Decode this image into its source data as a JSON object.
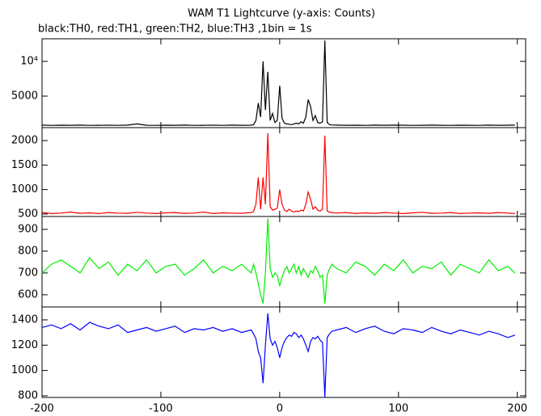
{
  "chart_data": [
    {
      "type": "line",
      "title": "WAM T1 Lightcurve (y-axis: Counts)",
      "subtitle": "black:TH0, red:TH1, green:TH2, blue:TH3 ,1bin = 1s",
      "color": "#000000",
      "x": [
        -200,
        -192,
        -184,
        -176,
        -168,
        -160,
        -152,
        -144,
        -136,
        -128,
        -120,
        -112,
        -104,
        -96,
        -88,
        -80,
        -72,
        -64,
        -56,
        -48,
        -40,
        -32,
        -24,
        -22,
        -20,
        -18,
        -16,
        -14,
        -12,
        -10,
        -8,
        -6,
        -4,
        -2,
        0,
        2,
        4,
        6,
        8,
        10,
        12,
        14,
        16,
        18,
        20,
        22,
        24,
        26,
        28,
        30,
        32,
        34,
        36,
        38,
        40,
        42,
        44,
        48,
        56,
        64,
        72,
        80,
        88,
        96,
        104,
        112,
        120,
        128,
        136,
        144,
        152,
        160,
        168,
        176,
        184,
        192,
        198
      ],
      "values": [
        820,
        790,
        810,
        800,
        830,
        790,
        800,
        810,
        790,
        820,
        1000,
        800,
        790,
        810,
        800,
        820,
        790,
        800,
        810,
        790,
        820,
        800,
        810,
        900,
        1500,
        4000,
        2000,
        10000,
        3000,
        8500,
        1500,
        2500,
        1200,
        1500,
        6500,
        1800,
        1100,
        1000,
        950,
        900,
        1000,
        1100,
        1000,
        1300,
        1100,
        2000,
        4500,
        3500,
        1500,
        2200,
        1200,
        1100,
        1300,
        13000,
        1200,
        900,
        850,
        820,
        800,
        810,
        790,
        820,
        800,
        830,
        810,
        790,
        800,
        820,
        800,
        790,
        810,
        800,
        790,
        820,
        800,
        810,
        830
      ],
      "xlim": [
        -200,
        207
      ],
      "xticks": [
        -200,
        -100,
        0,
        100,
        200
      ],
      "ylim": [
        465,
        13256
      ],
      "yticks": [
        5000,
        {
          "value": 10000,
          "label": "10⁴"
        }
      ]
    },
    {
      "type": "line",
      "color": "#ff0000",
      "x": [
        -200,
        -192,
        -184,
        -176,
        -168,
        -160,
        -152,
        -144,
        -136,
        -128,
        -120,
        -112,
        -104,
        -96,
        -88,
        -80,
        -72,
        -64,
        -56,
        -48,
        -40,
        -32,
        -24,
        -22,
        -20,
        -18,
        -16,
        -14,
        -12,
        -10,
        -8,
        -6,
        -4,
        -2,
        0,
        2,
        4,
        6,
        8,
        10,
        12,
        14,
        16,
        18,
        20,
        22,
        24,
        26,
        28,
        30,
        32,
        34,
        36,
        38,
        40,
        42,
        44,
        48,
        56,
        64,
        72,
        80,
        88,
        96,
        104,
        112,
        120,
        128,
        136,
        144,
        152,
        160,
        168,
        176,
        184,
        192,
        198
      ],
      "values": [
        530,
        510,
        520,
        540,
        515,
        525,
        510,
        530,
        520,
        515,
        535,
        520,
        510,
        525,
        530,
        515,
        520,
        540,
        510,
        525,
        520,
        515,
        530,
        550,
        700,
        1250,
        600,
        1250,
        700,
        2150,
        650,
        580,
        600,
        620,
        1000,
        700,
        580,
        550,
        600,
        560,
        540,
        560,
        550,
        580,
        560,
        700,
        950,
        800,
        600,
        650,
        580,
        560,
        600,
        2100,
        560,
        540,
        530,
        520,
        530,
        510,
        525,
        515,
        530,
        520,
        510,
        525,
        535,
        515,
        520,
        530,
        510,
        520,
        525,
        515,
        530,
        520,
        510
      ],
      "xlim": [
        -200,
        207
      ],
      "xticks": [
        -200,
        -100,
        0,
        100,
        200
      ],
      "ylim": [
        450,
        2264
      ],
      "yticks": [
        500,
        1000,
        1500,
        2000
      ]
    },
    {
      "type": "line",
      "color": "#00ee00",
      "x": [
        -200,
        -192,
        -184,
        -176,
        -168,
        -160,
        -152,
        -144,
        -136,
        -128,
        -120,
        -112,
        -104,
        -96,
        -88,
        -80,
        -72,
        -64,
        -56,
        -48,
        -40,
        -32,
        -24,
        -22,
        -20,
        -18,
        -16,
        -14,
        -12,
        -10,
        -8,
        -6,
        -4,
        -2,
        0,
        2,
        4,
        6,
        8,
        10,
        12,
        14,
        16,
        18,
        20,
        22,
        24,
        26,
        28,
        30,
        32,
        34,
        36,
        38,
        40,
        42,
        44,
        48,
        56,
        64,
        72,
        80,
        88,
        96,
        104,
        112,
        120,
        128,
        136,
        144,
        152,
        160,
        168,
        176,
        184,
        192,
        198
      ],
      "values": [
        700,
        740,
        760,
        730,
        700,
        770,
        720,
        750,
        690,
        740,
        710,
        760,
        700,
        730,
        740,
        690,
        720,
        760,
        700,
        730,
        710,
        740,
        700,
        740,
        700,
        650,
        600,
        560,
        700,
        950,
        720,
        680,
        700,
        690,
        640,
        680,
        710,
        730,
        700,
        720,
        740,
        700,
        730,
        690,
        720,
        700,
        680,
        710,
        700,
        730,
        710,
        680,
        690,
        560,
        690,
        720,
        740,
        720,
        700,
        750,
        730,
        690,
        740,
        710,
        760,
        700,
        730,
        720,
        750,
        690,
        740,
        720,
        700,
        760,
        710,
        730,
        700
      ],
      "xlim": [
        -200,
        207
      ],
      "xticks": [
        -200,
        -100,
        0,
        100,
        200
      ],
      "ylim": [
        544,
        959
      ],
      "yticks": [
        600,
        700,
        800,
        900
      ]
    },
    {
      "type": "line",
      "color": "#0000ff",
      "x": [
        -200,
        -192,
        -184,
        -176,
        -168,
        -160,
        -152,
        -144,
        -136,
        -128,
        -120,
        -112,
        -104,
        -96,
        -88,
        -80,
        -72,
        -64,
        -56,
        -48,
        -40,
        -32,
        -24,
        -22,
        -20,
        -18,
        -16,
        -14,
        -12,
        -10,
        -8,
        -6,
        -4,
        -2,
        0,
        2,
        4,
        6,
        8,
        10,
        12,
        14,
        16,
        18,
        20,
        22,
        24,
        26,
        28,
        30,
        32,
        34,
        36,
        38,
        40,
        42,
        44,
        48,
        56,
        64,
        72,
        80,
        88,
        96,
        104,
        112,
        120,
        128,
        136,
        144,
        152,
        160,
        168,
        176,
        184,
        192,
        198
      ],
      "values": [
        1340,
        1360,
        1330,
        1370,
        1320,
        1380,
        1350,
        1330,
        1360,
        1300,
        1320,
        1340,
        1310,
        1330,
        1350,
        1300,
        1330,
        1320,
        1340,
        1310,
        1330,
        1300,
        1320,
        1290,
        1250,
        1150,
        1100,
        900,
        1200,
        1450,
        1250,
        1200,
        1230,
        1180,
        1100,
        1180,
        1230,
        1260,
        1280,
        1270,
        1300,
        1290,
        1260,
        1280,
        1250,
        1200,
        1150,
        1230,
        1260,
        1250,
        1270,
        1240,
        1220,
        790,
        1260,
        1290,
        1310,
        1320,
        1340,
        1300,
        1330,
        1350,
        1310,
        1290,
        1330,
        1320,
        1300,
        1340,
        1310,
        1290,
        1320,
        1300,
        1280,
        1310,
        1290,
        1260,
        1280
      ],
      "xlim": [
        -200,
        207
      ],
      "xticks": [
        -200,
        -100,
        0,
        100,
        200
      ],
      "ylim": [
        787,
        1502
      ],
      "yticks": [
        800,
        1000,
        1200,
        1400
      ]
    }
  ]
}
